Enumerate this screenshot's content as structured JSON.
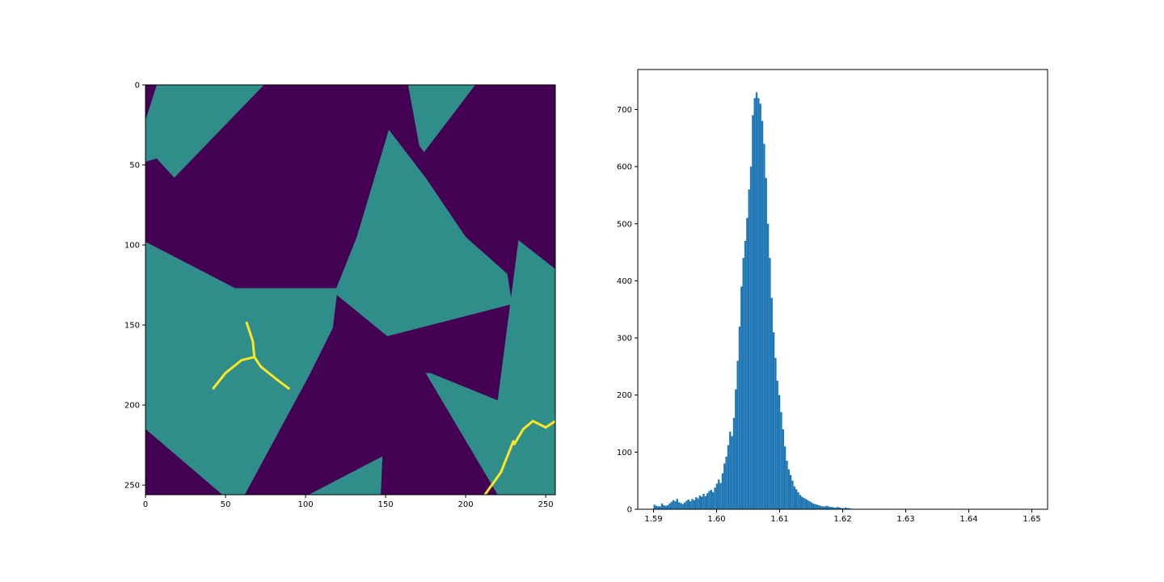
{
  "chart_data": [
    {
      "type": "heatmap",
      "colormap": "viridis",
      "xlim": [
        0,
        256
      ],
      "ylim": [
        256,
        0
      ],
      "xticks": [
        0,
        50,
        100,
        150,
        200,
        250
      ],
      "yticks": [
        0,
        50,
        100,
        150,
        200,
        250
      ],
      "xtick_labels": [
        "0",
        "50",
        "100",
        "150",
        "200",
        "250"
      ],
      "ytick_labels": [
        "0",
        "50",
        "100",
        "150",
        "200",
        "250"
      ],
      "background_value_color": "#440154",
      "grain_value_color": "#2f8d8a",
      "regions": [
        {
          "points": [
            [
              7,
              0
            ],
            [
              74,
              0
            ],
            [
              18,
              58
            ],
            [
              7,
              46
            ],
            [
              0,
              48
            ],
            [
              0,
              22
            ]
          ]
        },
        {
          "points": [
            [
              164,
              0
            ],
            [
              206,
              0
            ],
            [
              174,
              42
            ],
            [
              171,
              38
            ]
          ]
        },
        {
          "points": [
            [
              152,
              28
            ],
            [
              175,
              58
            ],
            [
              200,
              95
            ],
            [
              226,
              118
            ],
            [
              229,
              137
            ],
            [
              151,
              157
            ],
            [
              118,
              130
            ],
            [
              132,
              95
            ]
          ]
        },
        {
          "points": [
            [
              0,
              98
            ],
            [
              56,
              127
            ],
            [
              120,
              127
            ],
            [
              117,
              152
            ],
            [
              102,
              182
            ],
            [
              62,
              256
            ],
            [
              48,
              256
            ],
            [
              0,
              215
            ]
          ]
        },
        {
          "points": [
            [
              233,
              97
            ],
            [
              256,
              115
            ],
            [
              256,
              256
            ],
            [
              220,
              256
            ],
            [
              175,
              180
            ],
            [
              178,
              180
            ],
            [
              220,
              197
            ]
          ]
        },
        {
          "points": [
            [
              102,
              256
            ],
            [
              148,
              232
            ],
            [
              147,
              256
            ]
          ]
        }
      ],
      "highlights": [
        {
          "points": [
            [
              63,
              148
            ],
            [
              67,
              160
            ],
            [
              68,
              170
            ],
            [
              72,
              176
            ],
            [
              82,
              184
            ],
            [
              90,
              190
            ]
          ]
        },
        {
          "points": [
            [
              42,
              190
            ],
            [
              50,
              180
            ],
            [
              60,
              172
            ],
            [
              68,
              170
            ]
          ]
        },
        {
          "points": [
            [
              212,
              256
            ],
            [
              222,
              242
            ],
            [
              226,
              232
            ],
            [
              230,
              222
            ]
          ]
        },
        {
          "points": [
            [
              230,
              225
            ],
            [
              236,
              215
            ],
            [
              242,
              210
            ],
            [
              250,
              214
            ],
            [
              256,
              210
            ]
          ]
        }
      ]
    },
    {
      "type": "bar",
      "subtype": "histogram",
      "color": "#1f77b4",
      "xlim": [
        1.5875,
        1.6525
      ],
      "ylim": [
        0,
        770
      ],
      "xticks": [
        1.59,
        1.6,
        1.61,
        1.62,
        1.63,
        1.64,
        1.65
      ],
      "xtick_labels": [
        "1.59",
        "1.60",
        "1.61",
        "1.62",
        "1.63",
        "1.64",
        "1.65"
      ],
      "yticks": [
        0,
        100,
        200,
        300,
        400,
        500,
        600,
        700
      ],
      "ytick_labels": [
        "0",
        "100",
        "200",
        "300",
        "400",
        "500",
        "600",
        "700"
      ],
      "bin_start": 1.59,
      "bin_width": 0.0003,
      "counts": [
        8,
        6,
        5,
        5,
        10,
        7,
        6,
        7,
        10,
        13,
        16,
        14,
        18,
        12,
        11,
        9,
        12,
        15,
        17,
        14,
        18,
        16,
        21,
        19,
        24,
        22,
        27,
        23,
        28,
        32,
        34,
        30,
        38,
        45,
        52,
        46,
        63,
        80,
        92,
        112,
        136,
        128,
        160,
        210,
        260,
        320,
        390,
        440,
        470,
        510,
        560,
        600,
        690,
        720,
        730,
        720,
        710,
        680,
        640,
        580,
        500,
        440,
        370,
        310,
        265,
        225,
        200,
        170,
        140,
        110,
        85,
        70,
        60,
        50,
        40,
        35,
        30,
        25,
        22,
        20,
        18,
        16,
        14,
        12,
        10,
        9,
        8,
        7,
        6,
        5,
        5,
        6,
        5,
        4,
        4,
        3,
        3,
        4,
        3,
        2,
        2,
        3,
        2,
        2,
        1
      ]
    }
  ]
}
